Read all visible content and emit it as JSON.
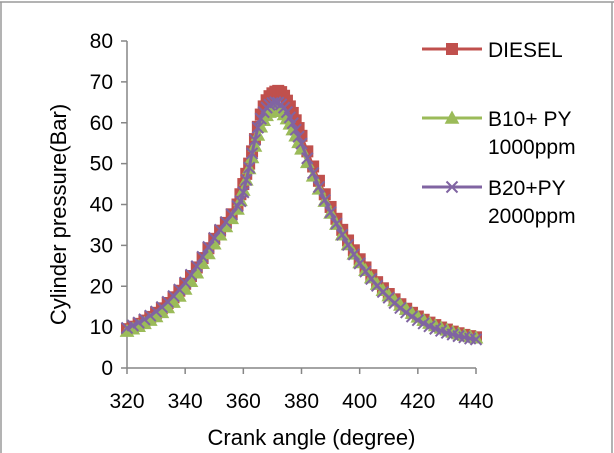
{
  "chart_data": {
    "type": "line",
    "title": "",
    "xlabel": "Crank angle (degree)",
    "ylabel": "Cylinder pressure(Bar)",
    "xlim": [
      320,
      440
    ],
    "ylim": [
      0,
      80
    ],
    "xticks": [
      320,
      340,
      360,
      380,
      400,
      420,
      440
    ],
    "yticks": [
      0,
      10,
      20,
      30,
      40,
      50,
      60,
      70,
      80
    ],
    "grid": false,
    "legend_position": "right",
    "series": [
      {
        "name_lines": [
          "DIESEL"
        ],
        "color": "#c0504d",
        "marker": "square",
        "x": [
          320,
          322,
          324,
          326,
          328,
          330,
          332,
          334,
          336,
          338,
          340,
          342,
          344,
          346,
          348,
          350,
          352,
          354,
          356,
          358,
          359,
          360,
          361,
          362,
          363,
          364,
          365,
          366,
          367,
          368,
          369,
          370,
          371,
          372,
          373,
          374,
          375,
          376,
          377,
          378,
          379,
          380,
          382,
          384,
          386,
          388,
          390,
          392,
          394,
          396,
          398,
          400,
          402,
          404,
          406,
          408,
          410,
          412,
          414,
          416,
          418,
          420,
          422,
          424,
          426,
          428,
          430,
          432,
          434,
          436,
          438,
          440
        ],
        "y": [
          9.5,
          10.1,
          10.8,
          11.6,
          12.5,
          13.5,
          14.6,
          15.9,
          17.3,
          18.9,
          20.6,
          22.5,
          24.6,
          26.9,
          29.3,
          31.6,
          33.6,
          35.5,
          37.6,
          40.0,
          42.5,
          45.0,
          47.5,
          50.0,
          53.0,
          56.0,
          59.0,
          62.0,
          64.0,
          65.5,
          66.5,
          67.2,
          67.6,
          67.8,
          67.5,
          66.6,
          65.4,
          64.0,
          62.4,
          60.6,
          58.7,
          56.8,
          53.0,
          49.3,
          45.8,
          42.5,
          39.4,
          36.5,
          33.8,
          31.2,
          28.8,
          26.6,
          24.6,
          22.7,
          21.0,
          19.5,
          18.1,
          16.8,
          15.6,
          14.5,
          13.5,
          12.6,
          11.8,
          11.1,
          10.5,
          9.9,
          9.4,
          8.9,
          8.5,
          8.1,
          7.8,
          7.5
        ]
      },
      {
        "name_lines": [
          "B10+ PY",
          "1000ppm"
        ],
        "color": "#9bbb59",
        "marker": "triangle",
        "x": [
          320,
          322,
          324,
          326,
          328,
          330,
          332,
          334,
          336,
          338,
          340,
          342,
          344,
          346,
          348,
          350,
          352,
          354,
          356,
          358,
          359,
          360,
          361,
          362,
          363,
          364,
          365,
          366,
          367,
          368,
          369,
          370,
          371,
          372,
          373,
          374,
          375,
          376,
          377,
          378,
          379,
          380,
          382,
          384,
          386,
          388,
          390,
          392,
          394,
          396,
          398,
          400,
          402,
          404,
          406,
          408,
          410,
          412,
          414,
          416,
          418,
          420,
          422,
          424,
          426,
          428,
          430,
          432,
          434,
          436,
          438,
          440
        ],
        "y": [
          9.0,
          9.6,
          10.2,
          10.9,
          11.7,
          12.6,
          13.6,
          14.8,
          16.1,
          17.6,
          19.3,
          21.2,
          23.3,
          25.6,
          28.0,
          30.4,
          32.6,
          34.6,
          36.6,
          38.9,
          41.0,
          43.5,
          46.0,
          48.8,
          51.5,
          54.3,
          57.0,
          59.0,
          60.6,
          61.8,
          62.6,
          63.1,
          63.3,
          63.2,
          62.8,
          62.0,
          61.0,
          59.7,
          58.3,
          56.8,
          55.2,
          53.6,
          50.3,
          47.0,
          43.8,
          40.8,
          37.9,
          35.2,
          32.6,
          30.2,
          27.9,
          25.8,
          23.9,
          22.1,
          20.5,
          19.0,
          17.7,
          16.5,
          15.4,
          14.4,
          13.4,
          12.5,
          11.7,
          11.0,
          10.4,
          9.8,
          9.3,
          8.8,
          8.4,
          8.0,
          7.7,
          7.4
        ]
      },
      {
        "name_lines": [
          "B20+PY",
          "2000ppm"
        ],
        "color": "#8064a2",
        "marker": "x",
        "x": [
          320,
          322,
          324,
          326,
          328,
          330,
          332,
          334,
          336,
          338,
          340,
          342,
          344,
          346,
          348,
          350,
          352,
          354,
          356,
          358,
          359,
          360,
          361,
          362,
          363,
          364,
          365,
          366,
          367,
          368,
          369,
          370,
          371,
          372,
          373,
          374,
          375,
          376,
          377,
          378,
          379,
          380,
          382,
          384,
          386,
          388,
          390,
          392,
          394,
          396,
          398,
          400,
          402,
          404,
          406,
          408,
          410,
          412,
          414,
          416,
          418,
          420,
          422,
          424,
          426,
          428,
          430,
          432,
          434,
          436,
          438,
          440
        ],
        "y": [
          9.8,
          10.4,
          11.1,
          11.9,
          12.8,
          13.8,
          14.9,
          16.2,
          17.6,
          19.2,
          20.9,
          22.8,
          24.9,
          27.2,
          29.6,
          31.8,
          33.8,
          35.7,
          37.6,
          39.6,
          40.8,
          43.0,
          46.0,
          49.0,
          52.5,
          55.8,
          58.8,
          61.0,
          62.6,
          63.7,
          64.4,
          64.8,
          65.0,
          64.9,
          64.5,
          63.7,
          62.6,
          61.3,
          59.9,
          58.3,
          56.6,
          54.9,
          51.3,
          47.7,
          44.3,
          41.1,
          38.1,
          35.3,
          32.6,
          30.1,
          27.8,
          25.6,
          23.6,
          21.8,
          20.1,
          18.6,
          17.2,
          15.9,
          14.7,
          13.6,
          12.6,
          11.7,
          10.9,
          10.2,
          9.6,
          9.1,
          8.6,
          8.2,
          7.8,
          7.5,
          7.2,
          7.0
        ]
      }
    ]
  }
}
